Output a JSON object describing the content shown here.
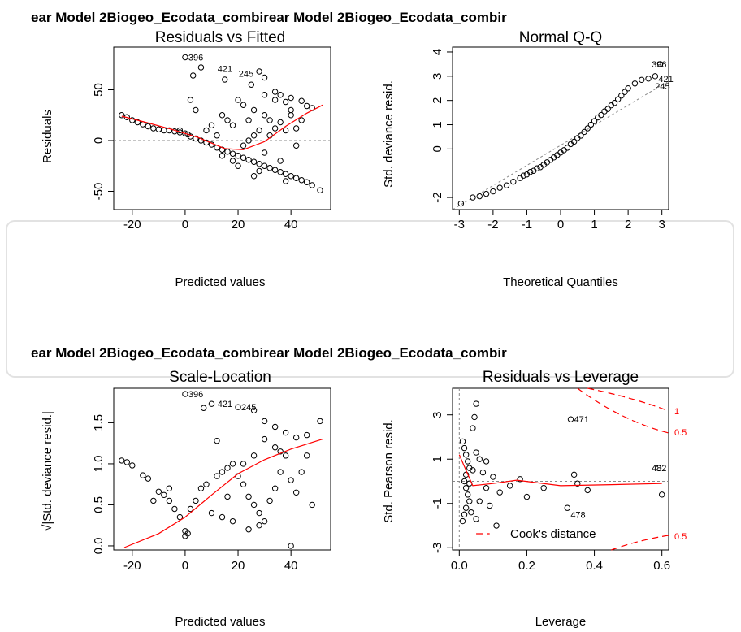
{
  "suptitles": [
    "ear Model 2Biogeo_Ecodata_combirear Model 2Biogeo_Ecodata_combir",
    "ear Model 2Biogeo_Ecodata_combirear Model 2Biogeo_Ecodata_combir"
  ],
  "chart_data": [
    {
      "type": "scatter",
      "title": "Residuals vs Fitted",
      "xlabel": "Predicted values",
      "ylabel": "Residuals",
      "xlim": [
        -27,
        55
      ],
      "ylim": [
        -68,
        92
      ],
      "xticks": [
        "-20",
        "0",
        "20",
        "40"
      ],
      "xtick_values": [
        -20,
        0,
        20,
        40
      ],
      "yticks": [
        "-50",
        "0",
        "50"
      ],
      "ytick_values": [
        -50,
        0,
        50
      ],
      "ref_line": {
        "kind": "h",
        "value": 0
      },
      "smooth": [
        [
          -24,
          24
        ],
        [
          -15,
          18
        ],
        [
          -5,
          11
        ],
        [
          5,
          3
        ],
        [
          15,
          -8
        ],
        [
          22,
          -9
        ],
        [
          30,
          -1
        ],
        [
          38,
          14
        ],
        [
          46,
          27
        ],
        [
          52,
          35
        ]
      ],
      "labels": [
        {
          "text": "396",
          "x": 0,
          "y": 82
        },
        {
          "text": "421",
          "x": 11,
          "y": 71
        },
        {
          "text": "245",
          "x": 19,
          "y": 66
        }
      ],
      "points": [
        [
          -24,
          25
        ],
        [
          -22,
          23
        ],
        [
          -20,
          20
        ],
        [
          -18,
          18
        ],
        [
          -16,
          16
        ],
        [
          -14,
          14
        ],
        [
          -12,
          12
        ],
        [
          -10,
          11
        ],
        [
          -8,
          10
        ],
        [
          -6,
          10
        ],
        [
          -4,
          9
        ],
        [
          -2,
          8
        ],
        [
          0,
          7
        ],
        [
          1,
          6
        ],
        [
          2,
          4
        ],
        [
          4,
          2
        ],
        [
          6,
          0
        ],
        [
          8,
          -2
        ],
        [
          10,
          -4
        ],
        [
          12,
          -7
        ],
        [
          14,
          -9
        ],
        [
          16,
          -11
        ],
        [
          18,
          -13
        ],
        [
          20,
          -15
        ],
        [
          22,
          -17
        ],
        [
          24,
          -19
        ],
        [
          26,
          -21
        ],
        [
          28,
          -23
        ],
        [
          30,
          -25
        ],
        [
          32,
          -27
        ],
        [
          34,
          -29
        ],
        [
          36,
          -31
        ],
        [
          38,
          -33
        ],
        [
          40,
          -35
        ],
        [
          42,
          -37
        ],
        [
          44,
          -39
        ],
        [
          46,
          -41
        ],
        [
          48,
          -44
        ],
        [
          51,
          -49
        ],
        [
          0,
          82
        ],
        [
          6,
          72
        ],
        [
          3,
          64
        ],
        [
          15,
          60
        ],
        [
          25,
          55
        ],
        [
          28,
          68
        ],
        [
          30,
          62
        ],
        [
          34,
          48
        ],
        [
          36,
          45
        ],
        [
          40,
          42
        ],
        [
          44,
          39
        ],
        [
          46,
          34
        ],
        [
          20,
          40
        ],
        [
          22,
          35
        ],
        [
          26,
          30
        ],
        [
          30,
          25
        ],
        [
          32,
          20
        ],
        [
          36,
          18
        ],
        [
          38,
          10
        ],
        [
          42,
          12
        ],
        [
          44,
          20
        ],
        [
          14,
          25
        ],
        [
          16,
          20
        ],
        [
          18,
          15
        ],
        [
          24,
          20
        ],
        [
          28,
          10
        ],
        [
          32,
          5
        ],
        [
          34,
          12
        ],
        [
          40,
          30
        ],
        [
          48,
          32
        ],
        [
          8,
          10
        ],
        [
          10,
          15
        ],
        [
          12,
          5
        ],
        [
          4,
          30
        ],
        [
          2,
          40
        ],
        [
          -2,
          10
        ],
        [
          20,
          -25
        ],
        [
          22,
          -5
        ],
        [
          24,
          0
        ],
        [
          26,
          5
        ],
        [
          30,
          45
        ],
        [
          34,
          40
        ],
        [
          38,
          38
        ],
        [
          40,
          25
        ],
        [
          42,
          -5
        ],
        [
          30,
          -12
        ],
        [
          36,
          -20
        ],
        [
          26,
          -35
        ],
        [
          28,
          -30
        ],
        [
          18,
          -20
        ],
        [
          14,
          -15
        ],
        [
          38,
          -40
        ]
      ]
    },
    {
      "type": "scatter",
      "title": "Normal Q-Q",
      "xlabel": "Theoretical Quantiles",
      "ylabel": "Std. deviance resid.",
      "xlim": [
        -3.2,
        3.2
      ],
      "ylim": [
        -2.5,
        4.2
      ],
      "xticks": [
        "-3",
        "-2",
        "-1",
        "0",
        "1",
        "2",
        "3"
      ],
      "xtick_values": [
        -3,
        -2,
        -1,
        0,
        1,
        2,
        3
      ],
      "yticks": [
        "-2",
        "0",
        "1",
        "2",
        "3",
        "4"
      ],
      "ytick_values": [
        -2,
        0,
        1,
        2,
        3,
        4
      ],
      "ref_line": {
        "kind": "qq"
      },
      "labels": [
        {
          "text": "396",
          "x": 2.6,
          "y": 3.5
        },
        {
          "text": "421",
          "x": 2.8,
          "y": 2.9
        },
        {
          "text": "245",
          "x": 2.7,
          "y": 2.6
        }
      ],
      "points": [
        [
          -2.95,
          -2.25
        ],
        [
          -2.6,
          -2.0
        ],
        [
          -2.4,
          -1.95
        ],
        [
          -2.2,
          -1.85
        ],
        [
          -2.0,
          -1.75
        ],
        [
          -1.8,
          -1.6
        ],
        [
          -1.6,
          -1.5
        ],
        [
          -1.4,
          -1.35
        ],
        [
          -1.2,
          -1.2
        ],
        [
          -1.0,
          -1.05
        ],
        [
          -0.8,
          -0.9
        ],
        [
          -0.6,
          -0.75
        ],
        [
          -0.4,
          -0.55
        ],
        [
          -0.2,
          -0.35
        ],
        [
          0.0,
          -0.15
        ],
        [
          0.2,
          0.05
        ],
        [
          0.4,
          0.3
        ],
        [
          0.6,
          0.55
        ],
        [
          0.8,
          0.85
        ],
        [
          1.0,
          1.15
        ],
        [
          1.2,
          1.4
        ],
        [
          1.4,
          1.65
        ],
        [
          1.6,
          1.9
        ],
        [
          1.8,
          2.2
        ],
        [
          2.0,
          2.5
        ],
        [
          2.2,
          2.7
        ],
        [
          2.4,
          2.85
        ],
        [
          2.6,
          2.9
        ],
        [
          2.8,
          3.0
        ],
        [
          2.95,
          3.5
        ],
        [
          -1.1,
          -1.1
        ],
        [
          -0.9,
          -0.95
        ],
        [
          -0.7,
          -0.8
        ],
        [
          -0.5,
          -0.65
        ],
        [
          -0.3,
          -0.45
        ],
        [
          -0.1,
          -0.25
        ],
        [
          0.1,
          -0.05
        ],
        [
          0.3,
          0.2
        ],
        [
          0.5,
          0.45
        ],
        [
          0.7,
          0.7
        ],
        [
          0.9,
          1.0
        ],
        [
          1.1,
          1.3
        ],
        [
          1.3,
          1.55
        ],
        [
          1.5,
          1.8
        ],
        [
          1.7,
          2.05
        ],
        [
          1.9,
          2.35
        ]
      ]
    },
    {
      "type": "scatter",
      "title": "Scale-Location",
      "xlabel": "Predicted values",
      "ylabel": "√|Std. deviance resid.|",
      "xlim": [
        -27,
        55
      ],
      "ylim": [
        -0.05,
        1.92
      ],
      "xticks": [
        "-20",
        "0",
        "20",
        "40"
      ],
      "xtick_values": [
        -20,
        0,
        20,
        40
      ],
      "yticks": [
        "0.0",
        "0.5",
        "1.0",
        "1.5"
      ],
      "ytick_values": [
        0,
        0.5,
        1.0,
        1.5
      ],
      "smooth": [
        [
          -23,
          -0.02
        ],
        [
          -10,
          0.15
        ],
        [
          0,
          0.35
        ],
        [
          10,
          0.62
        ],
        [
          20,
          0.88
        ],
        [
          30,
          1.05
        ],
        [
          40,
          1.18
        ],
        [
          52,
          1.3
        ]
      ],
      "labels": [
        {
          "text": "396",
          "x": 0,
          "y": 1.85
        },
        {
          "text": "421",
          "x": 11,
          "y": 1.73
        },
        {
          "text": "245",
          "x": 20,
          "y": 1.69
        }
      ],
      "points": [
        [
          -24,
          1.04
        ],
        [
          -22,
          1.02
        ],
        [
          -20,
          0.98
        ],
        [
          -16,
          0.86
        ],
        [
          -14,
          0.82
        ],
        [
          -10,
          0.66
        ],
        [
          -8,
          0.62
        ],
        [
          -6,
          0.55
        ],
        [
          -4,
          0.45
        ],
        [
          -2,
          0.35
        ],
        [
          0,
          0.18
        ],
        [
          0,
          0.12
        ],
        [
          1,
          0.15
        ],
        [
          0,
          1.85
        ],
        [
          7,
          1.68
        ],
        [
          10,
          1.73
        ],
        [
          20,
          1.69
        ],
        [
          26,
          1.65
        ],
        [
          30,
          1.52
        ],
        [
          34,
          1.45
        ],
        [
          38,
          1.38
        ],
        [
          42,
          1.32
        ],
        [
          46,
          1.35
        ],
        [
          51,
          1.52
        ],
        [
          4,
          0.55
        ],
        [
          6,
          0.7
        ],
        [
          8,
          0.75
        ],
        [
          12,
          0.85
        ],
        [
          14,
          0.9
        ],
        [
          16,
          0.95
        ],
        [
          18,
          1.0
        ],
        [
          20,
          0.85
        ],
        [
          22,
          0.75
        ],
        [
          24,
          0.6
        ],
        [
          26,
          0.5
        ],
        [
          28,
          0.4
        ],
        [
          30,
          0.3
        ],
        [
          32,
          0.55
        ],
        [
          34,
          0.7
        ],
        [
          36,
          0.9
        ],
        [
          38,
          1.1
        ],
        [
          40,
          0.8
        ],
        [
          42,
          0.65
        ],
        [
          44,
          0.9
        ],
        [
          46,
          1.1
        ],
        [
          48,
          0.5
        ],
        [
          2,
          0.45
        ],
        [
          10,
          0.4
        ],
        [
          18,
          0.3
        ],
        [
          24,
          0.2
        ],
        [
          28,
          0.25
        ],
        [
          34,
          1.2
        ],
        [
          36,
          1.15
        ],
        [
          40,
          0.0
        ],
        [
          30,
          1.3
        ],
        [
          26,
          1.1
        ],
        [
          22,
          1.0
        ],
        [
          16,
          0.6
        ],
        [
          14,
          0.35
        ],
        [
          12,
          1.28
        ],
        [
          -6,
          0.7
        ],
        [
          -12,
          0.55
        ]
      ]
    },
    {
      "type": "scatter",
      "title": "Residuals vs Leverage",
      "xlabel": "Leverage",
      "ylabel": "Std. Pearson resid.",
      "xlim": [
        -0.02,
        0.62
      ],
      "ylim": [
        -3.1,
        4.2
      ],
      "xticks": [
        "0.0",
        "0.2",
        "0.4",
        "0.6"
      ],
      "xtick_values": [
        0,
        0.2,
        0.4,
        0.6
      ],
      "yticks": [
        "-3",
        "-1",
        "1",
        "3"
      ],
      "ytick_values": [
        -3,
        -1,
        1,
        3
      ],
      "smooth": [
        [
          0.0,
          1.2
        ],
        [
          0.02,
          0.5
        ],
        [
          0.04,
          -0.2
        ],
        [
          0.1,
          -0.1
        ],
        [
          0.17,
          0.05
        ],
        [
          0.3,
          -0.2
        ],
        [
          0.45,
          -0.15
        ],
        [
          0.6,
          -0.1
        ]
      ],
      "cooks_label": "Cook's distance",
      "cook_levels": [
        "1",
        "0.5",
        "0.5"
      ],
      "labels": [
        {
          "text": "471",
          "x": 0.33,
          "y": 2.8
        },
        {
          "text": "482",
          "x": 0.56,
          "y": 0.6
        },
        {
          "text": "478",
          "x": 0.32,
          "y": -1.5
        }
      ],
      "points": [
        [
          0.01,
          1.8
        ],
        [
          0.015,
          1.5
        ],
        [
          0.02,
          1.2
        ],
        [
          0.025,
          0.9
        ],
        [
          0.03,
          0.6
        ],
        [
          0.02,
          0.3
        ],
        [
          0.015,
          0.0
        ],
        [
          0.02,
          -0.3
        ],
        [
          0.025,
          -0.6
        ],
        [
          0.03,
          -0.9
        ],
        [
          0.02,
          -1.2
        ],
        [
          0.015,
          -1.5
        ],
        [
          0.01,
          -1.8
        ],
        [
          0.04,
          2.4
        ],
        [
          0.05,
          3.5
        ],
        [
          0.045,
          2.9
        ],
        [
          0.035,
          -1.4
        ],
        [
          0.05,
          -1.7
        ],
        [
          0.06,
          -0.9
        ],
        [
          0.07,
          0.4
        ],
        [
          0.08,
          -0.3
        ],
        [
          0.1,
          0.2
        ],
        [
          0.12,
          -0.5
        ],
        [
          0.15,
          -0.2
        ],
        [
          0.18,
          0.1
        ],
        [
          0.05,
          1.3
        ],
        [
          0.06,
          1.0
        ],
        [
          0.04,
          0.5
        ],
        [
          0.03,
          -0.1
        ],
        [
          0.09,
          -1.1
        ],
        [
          0.33,
          2.8
        ],
        [
          0.34,
          0.3
        ],
        [
          0.32,
          -1.2
        ],
        [
          0.35,
          -0.1
        ],
        [
          0.38,
          -0.4
        ],
        [
          0.59,
          0.6
        ],
        [
          0.6,
          -0.6
        ],
        [
          0.2,
          -0.7
        ],
        [
          0.25,
          -0.3
        ],
        [
          0.11,
          -2.0
        ],
        [
          0.08,
          0.9
        ]
      ]
    }
  ]
}
